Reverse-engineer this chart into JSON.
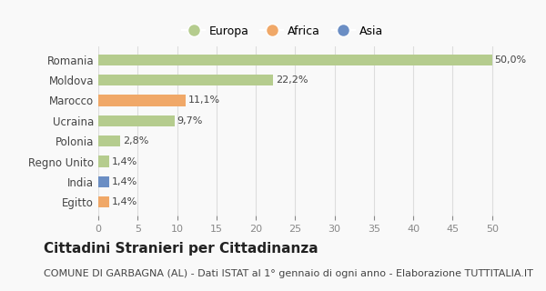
{
  "categories": [
    "Romania",
    "Moldova",
    "Marocco",
    "Ucraina",
    "Polonia",
    "Regno Unito",
    "India",
    "Egitto"
  ],
  "values": [
    50.0,
    22.2,
    11.1,
    9.7,
    2.8,
    1.4,
    1.4,
    1.4
  ],
  "labels": [
    "50,0%",
    "22,2%",
    "11,1%",
    "9,7%",
    "2,8%",
    "1,4%",
    "1,4%",
    "1,4%"
  ],
  "continent": [
    "Europa",
    "Europa",
    "Africa",
    "Europa",
    "Europa",
    "Europa",
    "Asia",
    "Africa"
  ],
  "colors": {
    "Europa": "#b5cc8e",
    "Africa": "#f0a868",
    "Asia": "#6b8ec4"
  },
  "legend_items": [
    "Europa",
    "Africa",
    "Asia"
  ],
  "xlim": [
    0,
    52
  ],
  "xticks": [
    0,
    5,
    10,
    15,
    20,
    25,
    30,
    35,
    40,
    45,
    50
  ],
  "title": "Cittadini Stranieri per Cittadinanza",
  "subtitle": "COMUNE DI GARBAGNA (AL) - Dati ISTAT al 1° gennaio di ogni anno - Elaborazione TUTTITALIA.IT",
  "bg_color": "#f9f9f9",
  "grid_color": "#dddddd",
  "title_fontsize": 11,
  "subtitle_fontsize": 8,
  "label_fontsize": 8
}
